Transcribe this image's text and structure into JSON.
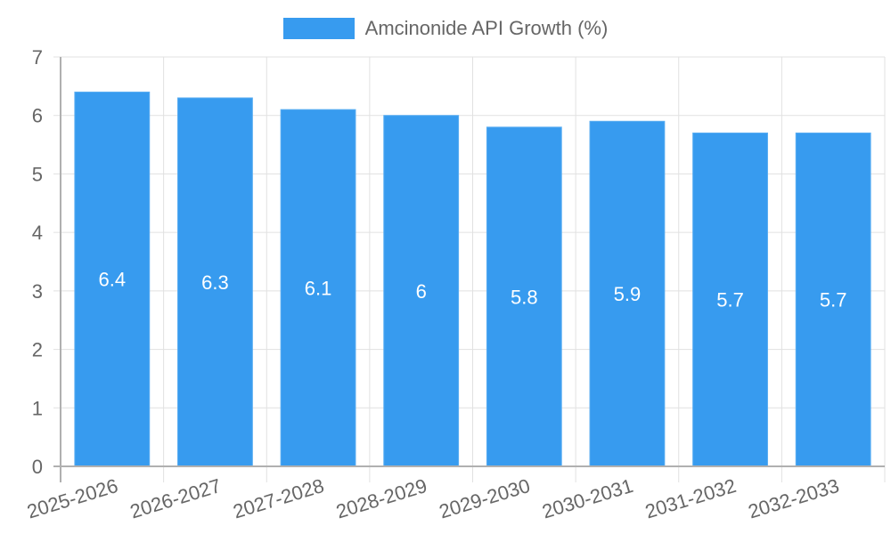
{
  "colors": {
    "bar": "#379bef",
    "bar_border": "#59adf2",
    "grid": "#e1e1e1",
    "axis": "#b0b0b0",
    "tick_text": "#666666",
    "value_label": "#ffffff"
  },
  "legend": {
    "label": "Amcinonide API Growth (%)"
  },
  "chart_data": {
    "type": "bar",
    "title": "",
    "xlabel": "",
    "ylabel": "",
    "ylim": [
      0,
      7
    ],
    "yticks": [
      0,
      1,
      2,
      3,
      4,
      5,
      6,
      7
    ],
    "grid": true,
    "legend_position": "top",
    "categories": [
      "2025-2026",
      "2026-2027",
      "2027-2028",
      "2028-2029",
      "2029-2030",
      "2030-2031",
      "2031-2032",
      "2032-2033"
    ],
    "series": [
      {
        "name": "Amcinonide API Growth (%)",
        "values": [
          6.4,
          6.3,
          6.1,
          6,
          5.8,
          5.9,
          5.7,
          5.7
        ],
        "data_labels": [
          "6.4",
          "6.3",
          "6.1",
          "6",
          "5.8",
          "5.9",
          "5.7",
          "5.7"
        ]
      }
    ]
  }
}
